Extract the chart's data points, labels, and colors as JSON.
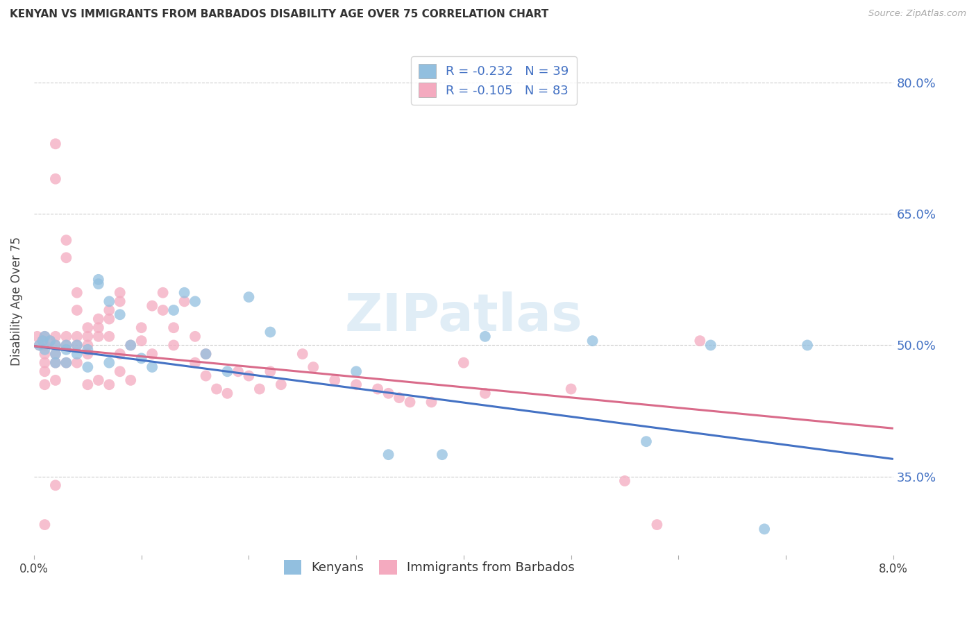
{
  "title": "KENYAN VS IMMIGRANTS FROM BARBADOS DISABILITY AGE OVER 75 CORRELATION CHART",
  "source": "Source: ZipAtlas.com",
  "ylabel": "Disability Age Over 75",
  "y_ticks": [
    0.35,
    0.5,
    0.65,
    0.8
  ],
  "y_tick_labels": [
    "35.0%",
    "50.0%",
    "65.0%",
    "80.0%"
  ],
  "xlim": [
    0.0,
    0.08
  ],
  "ylim": [
    0.26,
    0.84
  ],
  "legend_labels": [
    "Kenyans",
    "Immigrants from Barbados"
  ],
  "kenyan_color": "#92bfdf",
  "barbados_color": "#f4aabf",
  "kenyan_line_color": "#4472c4",
  "barbados_line_color": "#d96b8a",
  "kenyans_x": [
    0.0005,
    0.0008,
    0.001,
    0.001,
    0.0015,
    0.002,
    0.002,
    0.002,
    0.003,
    0.003,
    0.003,
    0.004,
    0.004,
    0.005,
    0.005,
    0.006,
    0.006,
    0.007,
    0.007,
    0.008,
    0.009,
    0.01,
    0.011,
    0.013,
    0.014,
    0.015,
    0.016,
    0.018,
    0.02,
    0.022,
    0.03,
    0.033,
    0.038,
    0.042,
    0.052,
    0.057,
    0.063,
    0.068,
    0.072
  ],
  "kenyans_y": [
    0.5,
    0.505,
    0.495,
    0.51,
    0.505,
    0.5,
    0.49,
    0.48,
    0.5,
    0.495,
    0.48,
    0.49,
    0.5,
    0.495,
    0.475,
    0.57,
    0.575,
    0.55,
    0.48,
    0.535,
    0.5,
    0.485,
    0.475,
    0.54,
    0.56,
    0.55,
    0.49,
    0.47,
    0.555,
    0.515,
    0.47,
    0.375,
    0.375,
    0.51,
    0.505,
    0.39,
    0.5,
    0.29,
    0.5
  ],
  "barbados_x": [
    0.0003,
    0.0005,
    0.0008,
    0.001,
    0.001,
    0.001,
    0.001,
    0.001,
    0.001,
    0.001,
    0.0015,
    0.002,
    0.002,
    0.002,
    0.002,
    0.002,
    0.002,
    0.002,
    0.002,
    0.003,
    0.003,
    0.003,
    0.003,
    0.003,
    0.004,
    0.004,
    0.004,
    0.004,
    0.004,
    0.005,
    0.005,
    0.005,
    0.005,
    0.005,
    0.006,
    0.006,
    0.006,
    0.006,
    0.007,
    0.007,
    0.007,
    0.007,
    0.008,
    0.008,
    0.008,
    0.008,
    0.009,
    0.009,
    0.01,
    0.01,
    0.011,
    0.011,
    0.012,
    0.012,
    0.013,
    0.013,
    0.014,
    0.015,
    0.015,
    0.016,
    0.016,
    0.017,
    0.018,
    0.019,
    0.02,
    0.021,
    0.022,
    0.023,
    0.025,
    0.026,
    0.028,
    0.03,
    0.032,
    0.033,
    0.034,
    0.035,
    0.037,
    0.04,
    0.042,
    0.05,
    0.055,
    0.058,
    0.062
  ],
  "barbados_y": [
    0.51,
    0.5,
    0.505,
    0.51,
    0.5,
    0.49,
    0.48,
    0.47,
    0.455,
    0.295,
    0.505,
    0.73,
    0.69,
    0.51,
    0.5,
    0.49,
    0.48,
    0.46,
    0.34,
    0.62,
    0.6,
    0.51,
    0.5,
    0.48,
    0.56,
    0.54,
    0.51,
    0.5,
    0.48,
    0.52,
    0.51,
    0.5,
    0.49,
    0.455,
    0.53,
    0.52,
    0.51,
    0.46,
    0.54,
    0.53,
    0.51,
    0.455,
    0.56,
    0.55,
    0.49,
    0.47,
    0.5,
    0.46,
    0.52,
    0.505,
    0.545,
    0.49,
    0.56,
    0.54,
    0.52,
    0.5,
    0.55,
    0.51,
    0.48,
    0.49,
    0.465,
    0.45,
    0.445,
    0.47,
    0.465,
    0.45,
    0.47,
    0.455,
    0.49,
    0.475,
    0.46,
    0.455,
    0.45,
    0.445,
    0.44,
    0.435,
    0.435,
    0.48,
    0.445,
    0.45,
    0.345,
    0.295,
    0.505
  ]
}
